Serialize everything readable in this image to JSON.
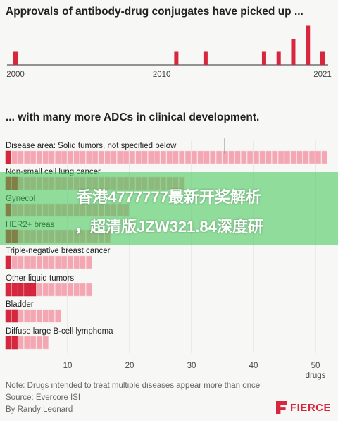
{
  "colors": {
    "accent": "#d7263d",
    "light": "#f2a7b3",
    "light_stroke": "#f8d0d6",
    "axis": "#555555",
    "grid": "#dddddd",
    "overlay": "#3cc850"
  },
  "titles": {
    "top": "Approvals of antibody-drug conjugates have picked up ...",
    "bottom": "... with many more ADCs in clinical development."
  },
  "chart_data": [
    {
      "type": "bar",
      "title": "Approvals of antibody-drug conjugates have picked up ...",
      "x": [
        2000,
        2001,
        2002,
        2003,
        2004,
        2005,
        2006,
        2007,
        2008,
        2009,
        2010,
        2011,
        2012,
        2013,
        2014,
        2015,
        2016,
        2017,
        2018,
        2019,
        2020,
        2021
      ],
      "values": [
        1,
        0,
        0,
        0,
        0,
        0,
        0,
        0,
        0,
        0,
        0,
        1,
        0,
        1,
        0,
        0,
        0,
        1,
        1,
        2,
        3,
        1
      ],
      "xticks": [
        "2000",
        "2010",
        "2021"
      ],
      "ylim": [
        0,
        3
      ]
    },
    {
      "type": "bar",
      "orientation": "horizontal",
      "title": "... with many more ADCs in clinical development.",
      "categories": [
        "Disease area: Solid tumors, not specified below",
        "Non-small cell lung cancer",
        "Gynecol",
        "HER2+ breas",
        "Triple-negative breast cancer",
        "Other liquid tumors",
        "Bladder",
        "Diffuse large B-cell lymphoma"
      ],
      "totals": [
        52,
        29,
        20,
        17,
        14,
        14,
        9,
        7
      ],
      "approved": [
        1,
        2,
        1,
        2,
        1,
        5,
        2,
        2
      ],
      "xticks": [
        10,
        20,
        30,
        40,
        50
      ],
      "xtick_suffix": "drugs",
      "xlim": [
        0,
        52
      ]
    }
  ],
  "notes": {
    "line1": "Note: Drugs intended to treat multiple diseases appear more than once",
    "line2": "Source: Evercore ISI",
    "line3": "By Randy Leonard"
  },
  "brand": "FIERCE",
  "overlay": {
    "line1": "香港4777777最新开奖解析",
    "line2": "，超清版JZW321.84深度研"
  }
}
